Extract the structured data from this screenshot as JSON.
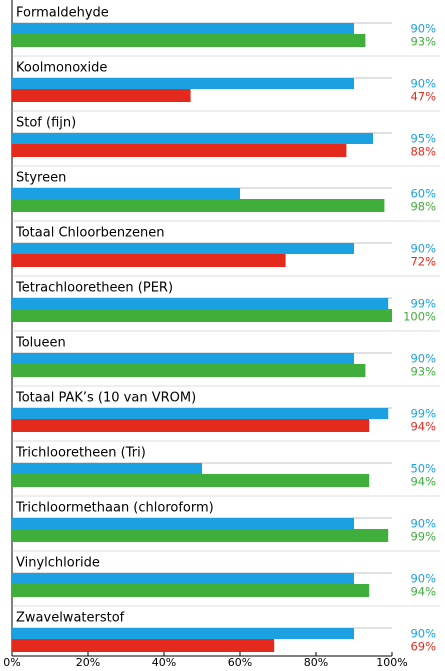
{
  "chart_data": {
    "type": "hbar",
    "categories": [
      "Formaldehyde",
      "Koolmonoxide",
      "Stof (fijn)",
      "Styreen",
      "Totaal Chloorbenzenen",
      "Tetrachlooretheen (PER)",
      "Tolueen",
      "Totaal PAK’s (10 van VROM)",
      "Trichlooretheen (Tri)",
      "Trichloormethaan (chloroform)",
      "Vinylchloride",
      "Zwavelwaterstof"
    ],
    "series": [
      {
        "color": "#1ba0e2",
        "values": [
          90,
          90,
          95,
          60,
          90,
          99,
          90,
          99,
          50,
          90,
          90,
          90
        ],
        "value_labels": [
          "90%",
          "90%",
          "95%",
          "60%",
          "90%",
          "99%",
          "90%",
          "99%",
          "50%",
          "90%",
          "90%",
          "90%"
        ]
      },
      {
        "colors": [
          "#3fae3a",
          "#e42a1d",
          "#e42a1d",
          "#3fae3a",
          "#e42a1d",
          "#3fae3a",
          "#3fae3a",
          "#e42a1d",
          "#3fae3a",
          "#3fae3a",
          "#3fae3a",
          "#e42a1d"
        ],
        "values": [
          93,
          47,
          88,
          98,
          72,
          100,
          93,
          94,
          94,
          99,
          94,
          69
        ],
        "value_labels": [
          "93%",
          "47%",
          "88%",
          "98%",
          "72%",
          "100%",
          "93%",
          "94%",
          "94%",
          "99%",
          "94%",
          "69%"
        ]
      }
    ],
    "xlim": [
      0,
      100
    ],
    "xticks": [
      {
        "value": 0,
        "label": "0%"
      },
      {
        "value": 20,
        "label": "20%"
      },
      {
        "value": 40,
        "label": "40%"
      },
      {
        "value": 60,
        "label": "60%"
      },
      {
        "value": 80,
        "label": "80%"
      },
      {
        "value": 100,
        "label": "100%"
      }
    ]
  }
}
